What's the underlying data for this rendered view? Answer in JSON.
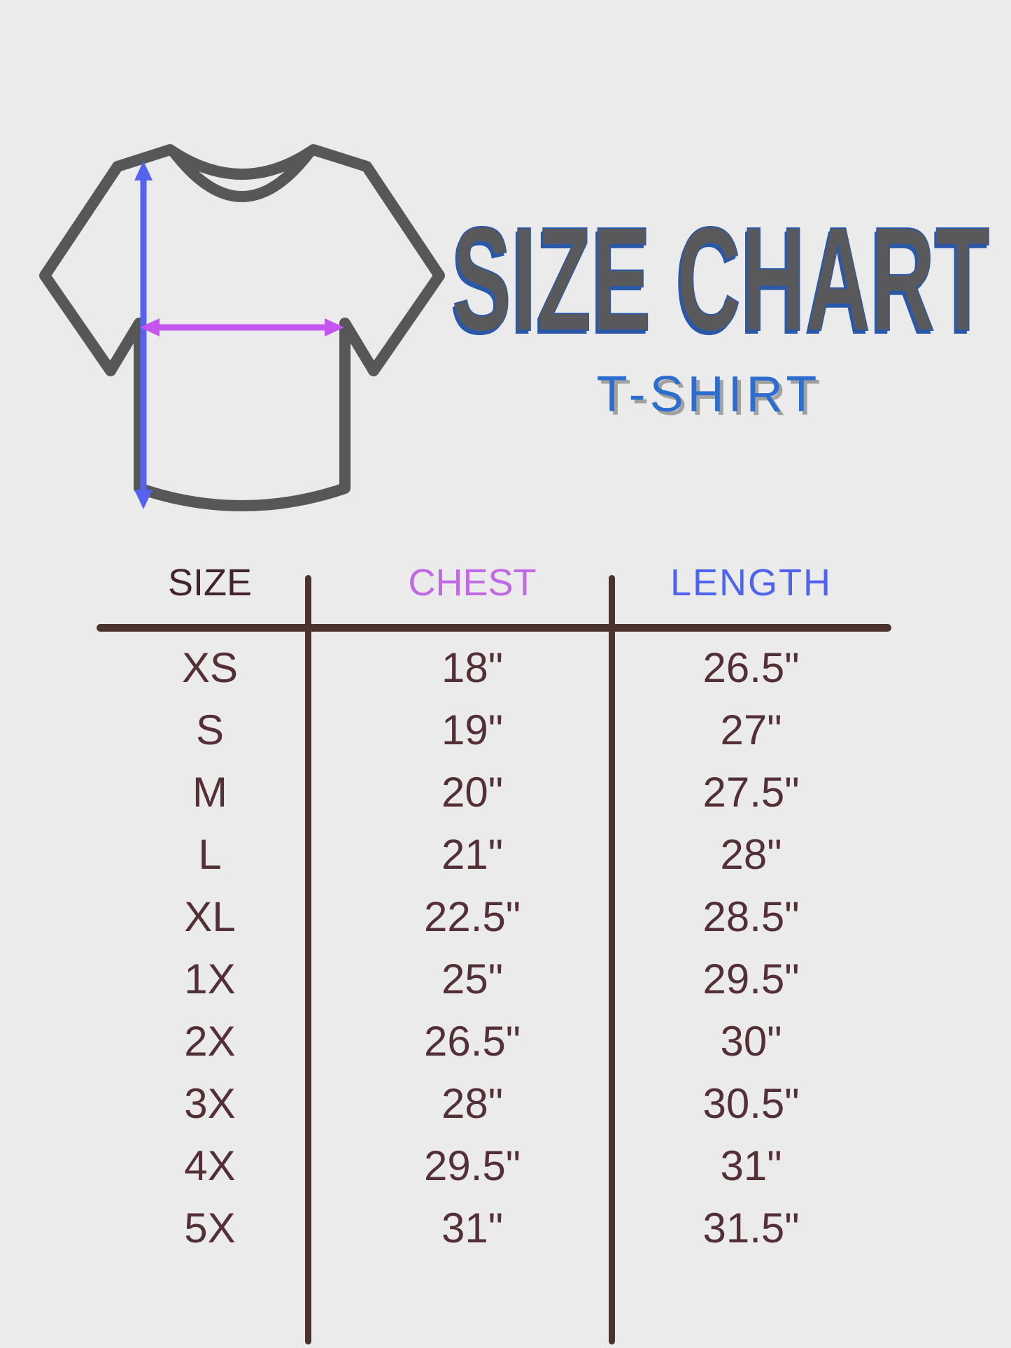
{
  "page": {
    "background_color": "#ECEBEB"
  },
  "header": {
    "title": "SIZE CHART",
    "subtitle": "T-SHIRT",
    "title_color": "#59595B",
    "title_outline_color": "#2A58A8",
    "subtitle_color": "#2C6ECF"
  },
  "diagram": {
    "icon": "t-shirt-outline-icon",
    "shirt_outline_color": "#57575A",
    "length_arrow_color": "#5463EE",
    "chest_arrow_color": "#C455EE"
  },
  "table": {
    "columns": [
      {
        "key": "size",
        "label": "SIZE",
        "color": "#40262B"
      },
      {
        "key": "chest",
        "label": "CHEST",
        "color": "#BF69E4"
      },
      {
        "key": "length",
        "label": "LENGTH",
        "color": "#4F63ED"
      }
    ],
    "rows": [
      {
        "size": "XS",
        "chest": "18\"",
        "length": "26.5\""
      },
      {
        "size": "S",
        "chest": "19\"",
        "length": "27\""
      },
      {
        "size": "M",
        "chest": "20\"",
        "length": "27.5\""
      },
      {
        "size": "L",
        "chest": "21\"",
        "length": "28\""
      },
      {
        "size": "XL",
        "chest": "22.5\"",
        "length": "28.5\""
      },
      {
        "size": "1X",
        "chest": "25\"",
        "length": "29.5\""
      },
      {
        "size": "2X",
        "chest": "26.5\"",
        "length": "30\""
      },
      {
        "size": "3X",
        "chest": "28\"",
        "length": "30.5\""
      },
      {
        "size": "4X",
        "chest": "29.5\"",
        "length": "31\""
      },
      {
        "size": "5X",
        "chest": "31\"",
        "length": "31.5\""
      }
    ],
    "value_color": "#533036",
    "line_color": "#4B332D"
  },
  "chart_data": {
    "type": "table",
    "title": "SIZE CHART",
    "subtitle": "T-SHIRT",
    "columns": [
      "SIZE",
      "CHEST",
      "LENGTH"
    ],
    "rows": [
      [
        "XS",
        "18\"",
        "26.5\""
      ],
      [
        "S",
        "19\"",
        "27\""
      ],
      [
        "M",
        "20\"",
        "27.5\""
      ],
      [
        "L",
        "21\"",
        "28\""
      ],
      [
        "XL",
        "22.5\"",
        "28.5\""
      ],
      [
        "1X",
        "25\"",
        "29.5\""
      ],
      [
        "2X",
        "26.5\"",
        "30\""
      ],
      [
        "3X",
        "28\"",
        "30.5\""
      ],
      [
        "4X",
        "29.5\"",
        "31\""
      ],
      [
        "5X",
        "31\"",
        "31.5\""
      ]
    ],
    "sizes": [
      "XS",
      "S",
      "M",
      "L",
      "XL",
      "1X",
      "2X",
      "3X",
      "4X",
      "5X"
    ],
    "chest_in": [
      18,
      19,
      20,
      21,
      22.5,
      25,
      26.5,
      28,
      29.5,
      31
    ],
    "length_in": [
      26.5,
      27,
      27.5,
      28,
      28.5,
      29.5,
      30,
      30.5,
      31,
      31.5
    ]
  }
}
